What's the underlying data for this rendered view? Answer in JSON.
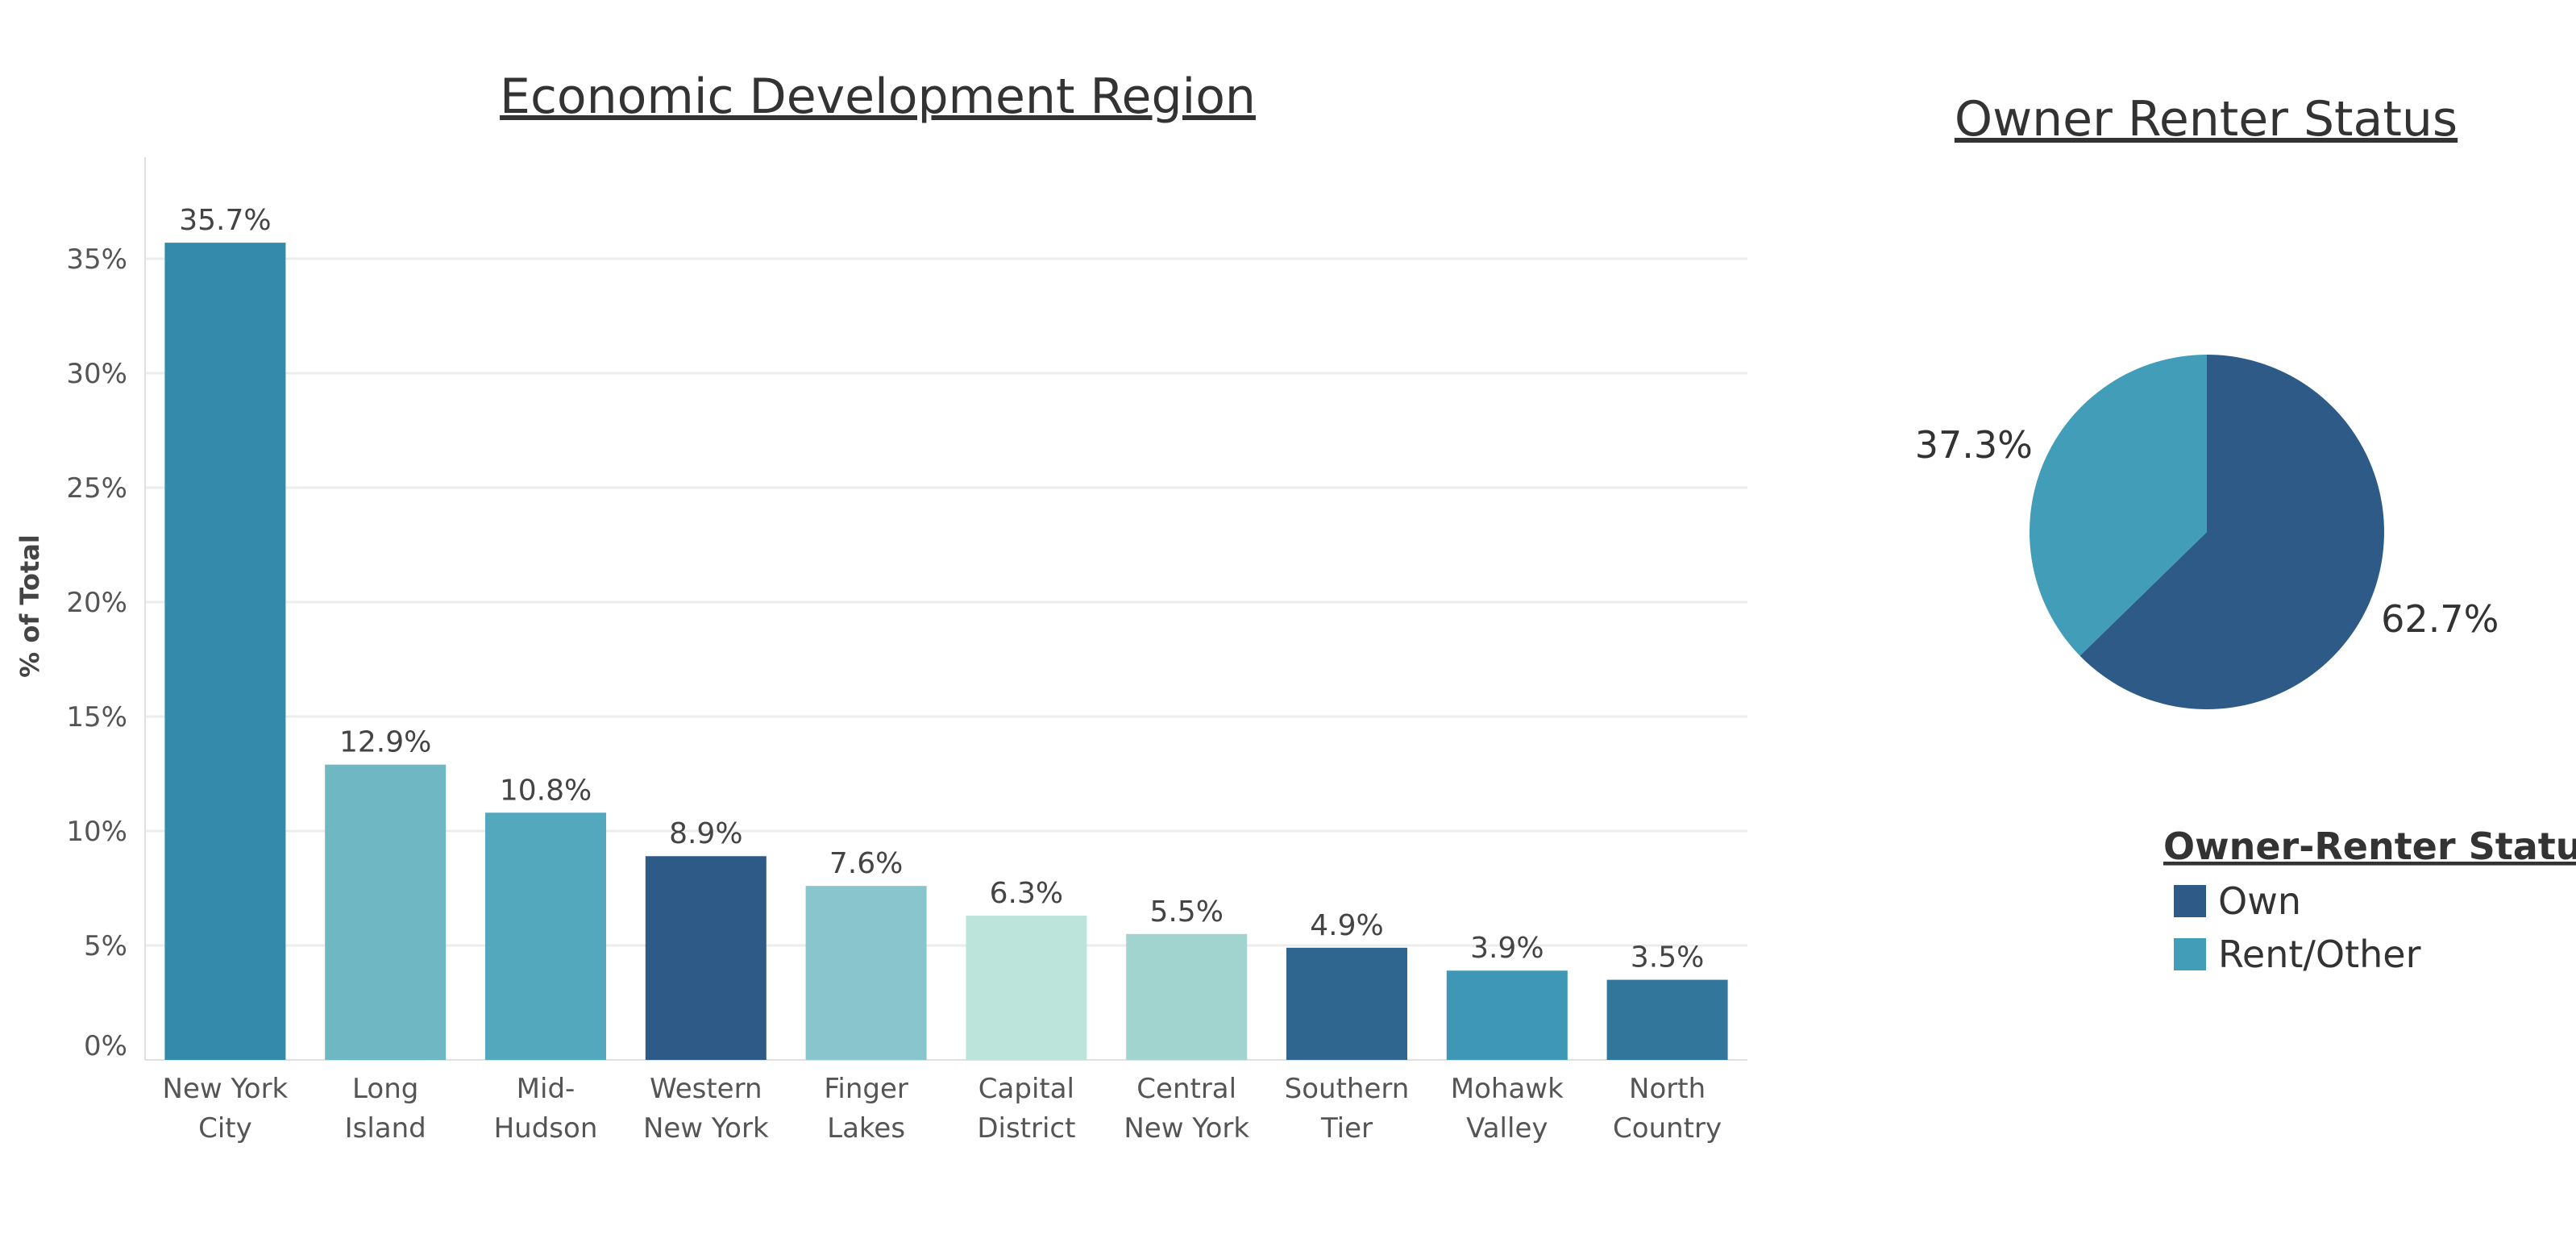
{
  "chart_data": [
    {
      "type": "bar",
      "title": "Economic Development Region",
      "ylabel": "% of Total",
      "xlabel": "",
      "ylim": [
        0,
        38
      ],
      "yticks": [
        "0%",
        "5%",
        "10%",
        "15%",
        "20%",
        "25%",
        "30%",
        "35%"
      ],
      "ytick_values": [
        0,
        5,
        10,
        15,
        20,
        25,
        30,
        35
      ],
      "categories": [
        [
          "New York",
          "City"
        ],
        [
          "Long",
          "Island"
        ],
        [
          "Mid-",
          "Hudson"
        ],
        [
          "Western",
          "New York"
        ],
        [
          "Finger",
          "Lakes"
        ],
        [
          "Capital",
          "District"
        ],
        [
          "Central",
          "New York"
        ],
        [
          "Southern",
          "Tier"
        ],
        [
          "Mohawk",
          "Valley"
        ],
        [
          "North",
          "Country"
        ]
      ],
      "values": [
        35.7,
        12.9,
        10.8,
        8.9,
        7.6,
        6.3,
        5.5,
        4.9,
        3.9,
        3.5
      ],
      "value_labels": [
        "35.7%",
        "12.9%",
        "10.8%",
        "8.9%",
        "7.6%",
        "6.3%",
        "5.5%",
        "4.9%",
        "3.9%",
        "3.5%"
      ],
      "colors": [
        "#348aab",
        "#6fb7c3",
        "#53a8bd",
        "#2e5a87",
        "#89c5cc",
        "#bce4da",
        "#a2d4cf",
        "#2f6690",
        "#3e97b7",
        "#32779b"
      ],
      "grid": true
    },
    {
      "type": "pie",
      "title": "Owner Renter Status",
      "slices": [
        {
          "name": "Own",
          "value": 62.7,
          "label": "62.7%",
          "color": "#2e5a87"
        },
        {
          "name": "Rent/Other",
          "value": 37.3,
          "label": "37.3%",
          "color": "#429db9"
        }
      ],
      "legend": {
        "title": "Owner-Renter Status",
        "placement": "bottom-right",
        "items": [
          "Own",
          "Rent/Other"
        ]
      }
    }
  ]
}
